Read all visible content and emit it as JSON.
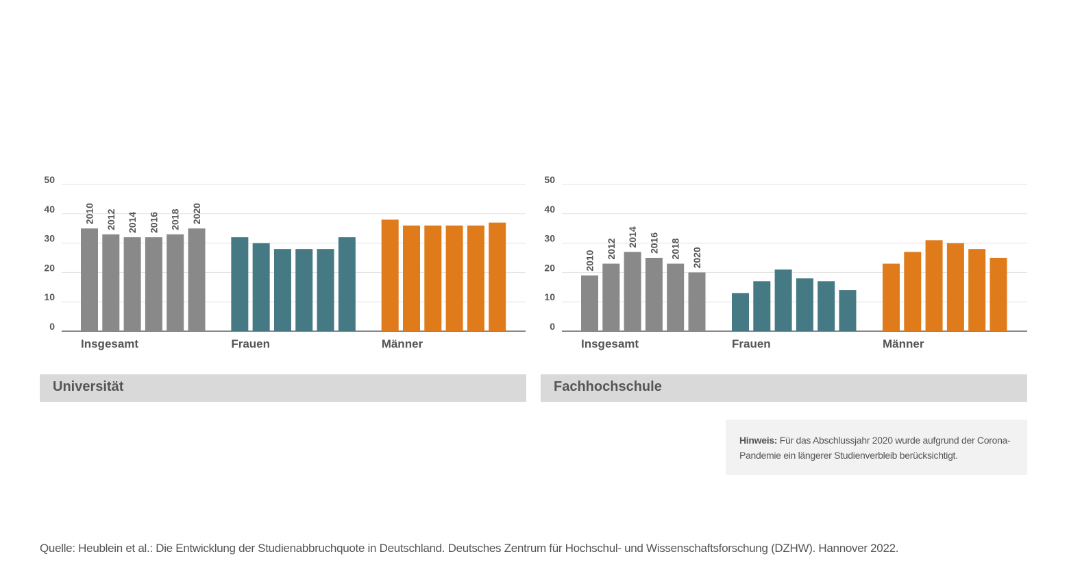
{
  "chart_data": [
    {
      "type": "bar",
      "title": "Universität",
      "categories": [
        "2010",
        "2012",
        "2014",
        "2016",
        "2018",
        "2020"
      ],
      "series": [
        {
          "name": "Insgesamt",
          "color": "#898989",
          "values": [
            35,
            33,
            32,
            32,
            33,
            35
          ]
        },
        {
          "name": "Frauen",
          "color": "#457a85",
          "values": [
            32,
            30,
            28,
            28,
            28,
            32
          ]
        },
        {
          "name": "Männer",
          "color": "#e07b1c",
          "values": [
            38,
            36,
            36,
            36,
            36,
            37
          ]
        }
      ],
      "ylim": [
        0,
        50
      ],
      "yticks": [
        0,
        10,
        20,
        30,
        40,
        50
      ],
      "grid": true
    },
    {
      "type": "bar",
      "title": "Fachhochschule",
      "categories": [
        "2010",
        "2012",
        "2014",
        "2016",
        "2018",
        "2020"
      ],
      "series": [
        {
          "name": "Insgesamt",
          "color": "#898989",
          "values": [
            19,
            23,
            27,
            25,
            23,
            20
          ]
        },
        {
          "name": "Frauen",
          "color": "#457a85",
          "values": [
            13,
            17,
            21,
            18,
            17,
            14
          ]
        },
        {
          "name": "Männer",
          "color": "#e07b1c",
          "values": [
            23,
            27,
            31,
            30,
            28,
            25
          ]
        }
      ],
      "ylim": [
        0,
        50
      ],
      "yticks": [
        0,
        10,
        20,
        30,
        40,
        50
      ],
      "grid": true
    }
  ],
  "note": {
    "label": "Hinweis:",
    "text": "Für das Abschlussjahr 2020 wurde aufgrund der Corona-Pandemie ein längerer Studienverbleib berücksichtigt."
  },
  "source": "Quelle: Heublein et al.: Die Entwicklung der Studienabbruchquote in Deutschland. Deutsches Zentrum für Hochschul- und Wissenschaftsforschung (DZHW). Hannover 2022."
}
